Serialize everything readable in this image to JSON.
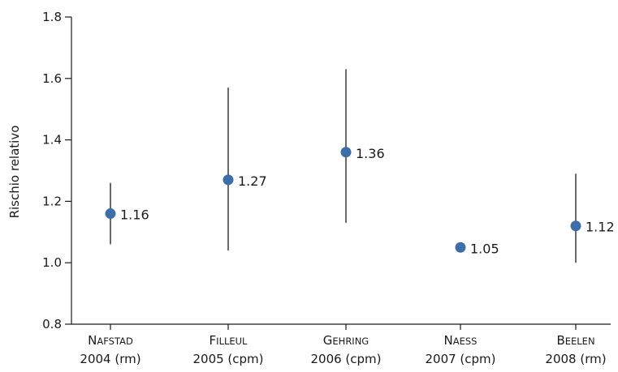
{
  "chart_data": {
    "type": "scatter",
    "ylabel": "Rischio relativo",
    "ylim": [
      0.8,
      1.8
    ],
    "yticks": [
      "0.8",
      "1.0",
      "1.2",
      "1.4",
      "1.6",
      "1.8"
    ],
    "categories": [
      {
        "name": "NAFSTAD",
        "sub": "2004 (rm)"
      },
      {
        "name": "FILLEUL",
        "sub": "2005 (cpm)"
      },
      {
        "name": "GEHRING",
        "sub": "2006 (cpm)"
      },
      {
        "name": "NAESS",
        "sub": "2007 (cpm)"
      },
      {
        "name": "BEELEN",
        "sub": "2008 (rm)"
      }
    ],
    "points": [
      {
        "value": 1.16,
        "label": "1.16",
        "low": 1.06,
        "high": 1.26
      },
      {
        "value": 1.27,
        "label": "1.27",
        "low": 1.04,
        "high": 1.57
      },
      {
        "value": 1.36,
        "label": "1.36",
        "low": 1.13,
        "high": 1.63
      },
      {
        "value": 1.05,
        "label": "1.05",
        "low": null,
        "high": null
      },
      {
        "value": 1.12,
        "label": "1.12",
        "low": 1.0,
        "high": 1.29
      }
    ],
    "colors": {
      "point": "#3d6ea8",
      "line": "#1a1a1a",
      "axis": "#1a1a1a"
    }
  }
}
